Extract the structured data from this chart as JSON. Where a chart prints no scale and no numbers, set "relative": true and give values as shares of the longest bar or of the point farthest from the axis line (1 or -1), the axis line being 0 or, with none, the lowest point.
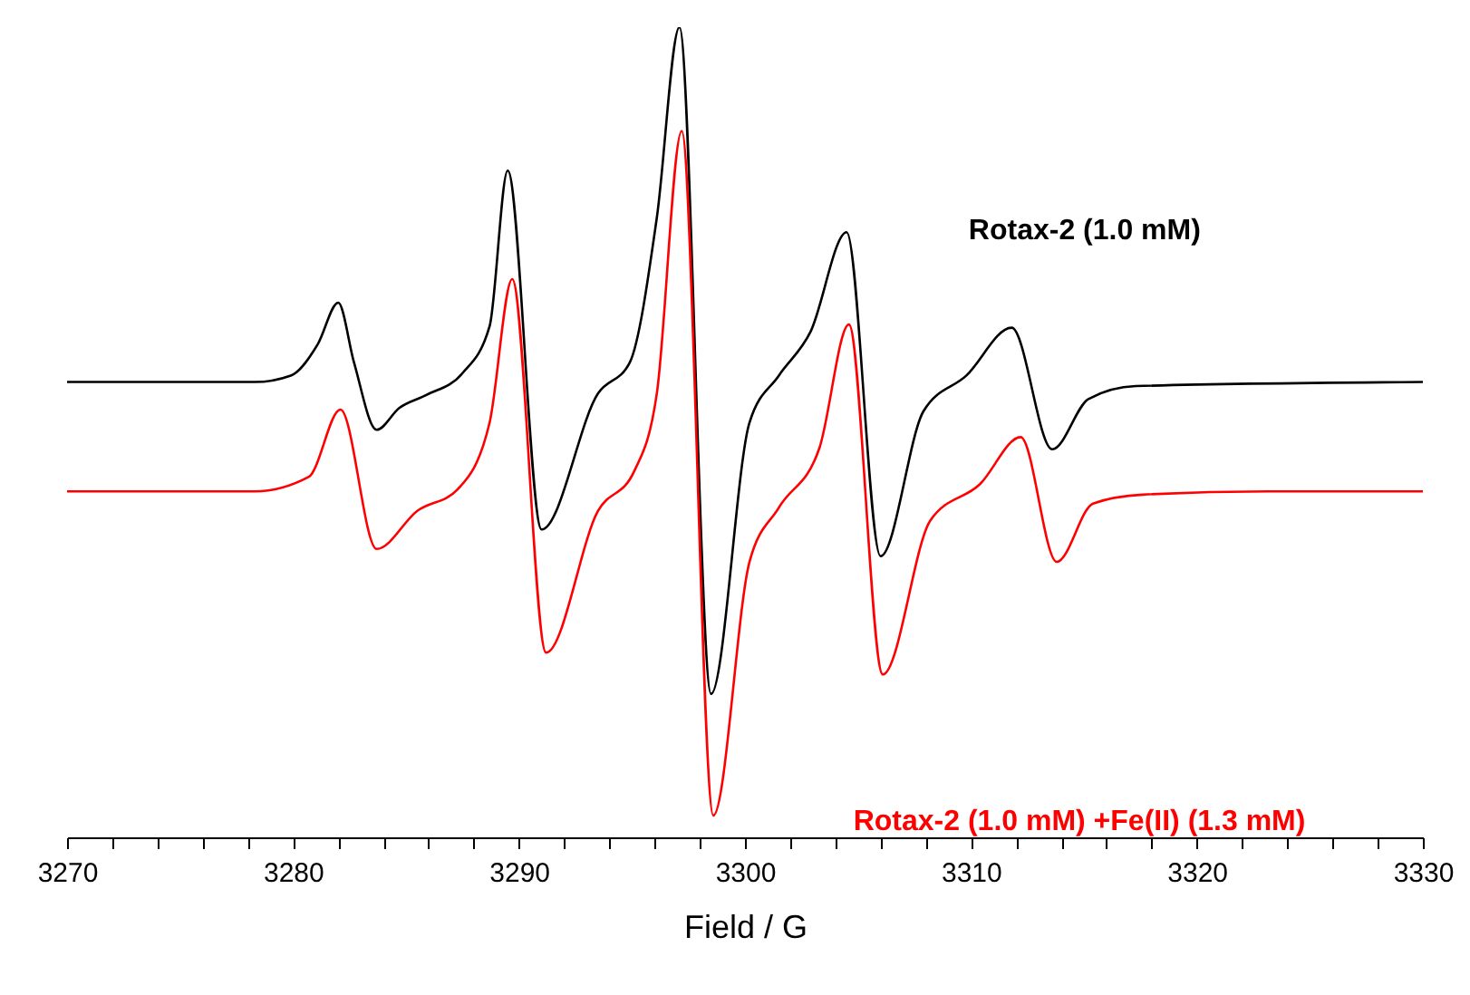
{
  "chart_data": {
    "type": "line",
    "relative": true,
    "xlabel": "Field / G",
    "xlim": [
      3270,
      3330
    ],
    "xticks": [
      3270,
      {
        "value": 3272,
        "label": null
      },
      {
        "value": 3274,
        "label": null
      },
      {
        "value": 3276,
        "label": null
      },
      {
        "value": 3278,
        "label": null
      },
      3280,
      {
        "value": 3282,
        "label": null
      },
      {
        "value": 3284,
        "label": null
      },
      {
        "value": 3286,
        "label": null
      },
      {
        "value": 3288,
        "label": null
      },
      3290,
      {
        "value": 3292,
        "label": null
      },
      {
        "value": 3294,
        "label": null
      },
      {
        "value": 3296,
        "label": null
      },
      {
        "value": 3298,
        "label": null
      },
      3300,
      {
        "value": 3302,
        "label": null
      },
      {
        "value": 3304,
        "label": null
      },
      {
        "value": 3306,
        "label": null
      },
      {
        "value": 3308,
        "label": null
      },
      3310,
      {
        "value": 3312,
        "label": null
      },
      {
        "value": 3314,
        "label": null
      },
      {
        "value": 3316,
        "label": null
      },
      {
        "value": 3318,
        "label": null
      },
      3320,
      {
        "value": 3322,
        "label": null
      },
      {
        "value": 3324,
        "label": null
      },
      {
        "value": 3326,
        "label": null
      },
      {
        "value": 3328,
        "label": null
      },
      3330
    ],
    "grid": false,
    "line_style": "solid",
    "marker": "none",
    "series": [
      {
        "name": "Rotax-2 (1.0 mM)",
        "color": "#000000",
        "x": [
          3270,
          3278.3,
          3279.9,
          3281.1,
          3282.0,
          3282.7,
          3283.7,
          3284.7,
          3285.9,
          3287.5,
          3288.7,
          3289.5,
          3291.0,
          3293.5,
          3294.9,
          3296.1,
          3297.1,
          3298.5,
          3300.2,
          3301.5,
          3302.9,
          3304.5,
          3306.0,
          3307.9,
          3309.8,
          3311.8,
          3313.6,
          3315.2,
          3317.3,
          3330
        ],
        "values": [
          0.562,
          0.562,
          0.57,
          0.609,
          0.66,
          0.586,
          0.503,
          0.53,
          0.546,
          0.573,
          0.631,
          0.823,
          0.38,
          0.548,
          0.586,
          0.765,
          1.0,
          0.177,
          0.512,
          0.57,
          0.624,
          0.747,
          0.347,
          0.526,
          0.57,
          0.629,
          0.479,
          0.541,
          0.557,
          0.562
        ]
      },
      {
        "name": "Rotax-2 (1.0 mM) +Fe(II) (1.3 mM)",
        "color": "#ff0000",
        "x": [
          3270,
          3278.3,
          3280.7,
          3282.1,
          3283.7,
          3285.5,
          3287.3,
          3288.7,
          3289.7,
          3291.2,
          3293.5,
          3295.1,
          3296.1,
          3297.2,
          3298.6,
          3300.2,
          3301.5,
          3303.3,
          3304.6,
          3306.1,
          3308.2,
          3310.4,
          3312.2,
          3313.8,
          3315.4,
          3317.6,
          3323.2,
          3330
        ],
        "values": [
          0.427,
          0.427,
          0.445,
          0.528,
          0.356,
          0.403,
          0.43,
          0.512,
          0.689,
          0.228,
          0.403,
          0.452,
          0.548,
          0.872,
          0.027,
          0.34,
          0.407,
          0.481,
          0.633,
          0.201,
          0.391,
          0.436,
          0.494,
          0.34,
          0.412,
          0.423,
          0.427,
          0.427
        ]
      }
    ]
  }
}
